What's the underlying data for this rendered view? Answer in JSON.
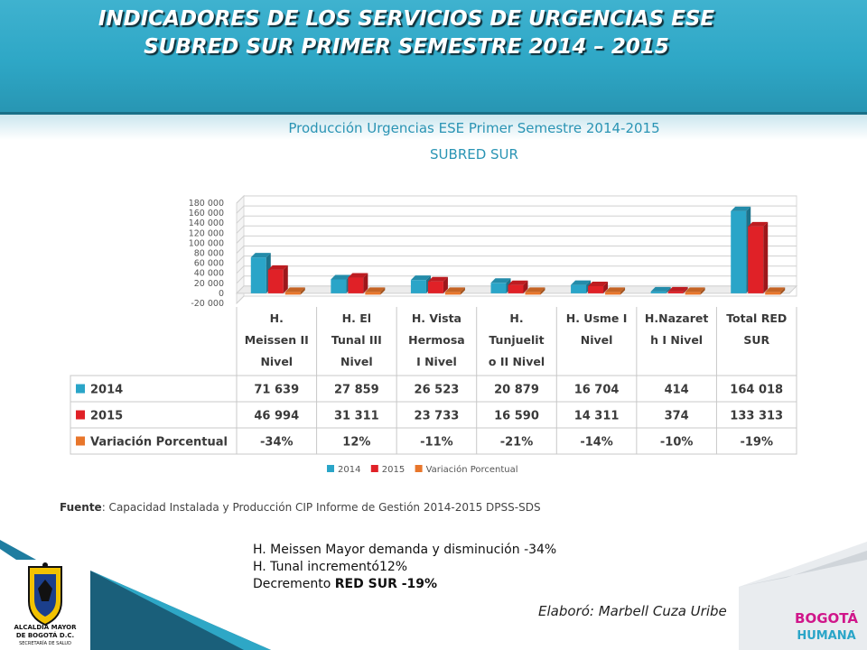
{
  "header": {
    "title_line1": "INDICADORES DE LOS SERVICIOS DE URGENCIAS ESE",
    "title_line2": "SUBRED SUR PRIMER SEMESTRE 2014 – 2015"
  },
  "chart_data": {
    "type": "bar",
    "title": "Producción Urgencias ESE Primer Semestre 2014-2015",
    "subtitle": "SUBRED SUR",
    "categories": [
      [
        "H.",
        "Meissen II",
        "Nivel"
      ],
      [
        "H. El",
        "Tunal III",
        "Nivel"
      ],
      [
        "H. Vista",
        "Hermosa",
        "I Nivel"
      ],
      [
        "H.",
        "Tunjuelit",
        "o II Nivel"
      ],
      [
        "H. Usme I",
        "Nivel"
      ],
      [
        "H.Nazaret",
        "h I Nivel"
      ],
      [
        "Total RED",
        "SUR"
      ]
    ],
    "series": [
      {
        "name": "2014",
        "color": "#2aa5c8",
        "values": [
          71639,
          27859,
          26523,
          20879,
          16704,
          414,
          164018
        ],
        "labels": [
          "71 639",
          "27 859",
          "26 523",
          "20 879",
          "16 704",
          "414",
          "164 018"
        ]
      },
      {
        "name": "2015",
        "color": "#e02127",
        "values": [
          46994,
          31311,
          23733,
          16590,
          14311,
          374,
          133313
        ],
        "labels": [
          "46 994",
          "31 311",
          "23 733",
          "16 590",
          "14 311",
          "374",
          "133 313"
        ]
      },
      {
        "name": "Variación Porcentual",
        "color": "#e8762b",
        "values": [
          -0.34,
          0.12,
          -0.11,
          -0.21,
          -0.14,
          -0.1,
          -0.19
        ],
        "labels": [
          "-34%",
          "12%",
          "-11%",
          "-21%",
          "-14%",
          "-10%",
          "-19%"
        ]
      }
    ],
    "yticks": [
      "180 000",
      "160 000",
      "140 000",
      "120 000",
      "100 000",
      "80 000",
      "60 000",
      "40 000",
      "20 000",
      "0",
      "-20 000"
    ],
    "ylim": [
      -20000,
      180000
    ],
    "legend_position": "bottom",
    "grid": true
  },
  "source": {
    "label": "Fuente",
    "text": ": Capacidad Instalada y Producción CIP Informe de Gestión 2014-2015 DPSS-SDS"
  },
  "notes": {
    "line1": "H. Meissen Mayor demanda y disminución -34%",
    "line2": "H. Tunal incrementó12%",
    "line3_prefix": "Decremento ",
    "line3_bold": "RED SUR  -19%"
  },
  "author": "Elaboró: Marbell Cuza Uribe",
  "logos": {
    "escudo_line1": "ALCALDÍA MAYOR",
    "escudo_line2": "DE BOGOTÁ D.C.",
    "escudo_line3": "SECRETARÍA DE SALUD",
    "bogota_line1": "BOGOTÁ",
    "bogota_line2": "HUMANA"
  },
  "colors": {
    "header": "#2ea7c6",
    "chart_title": "#2a94b4"
  }
}
